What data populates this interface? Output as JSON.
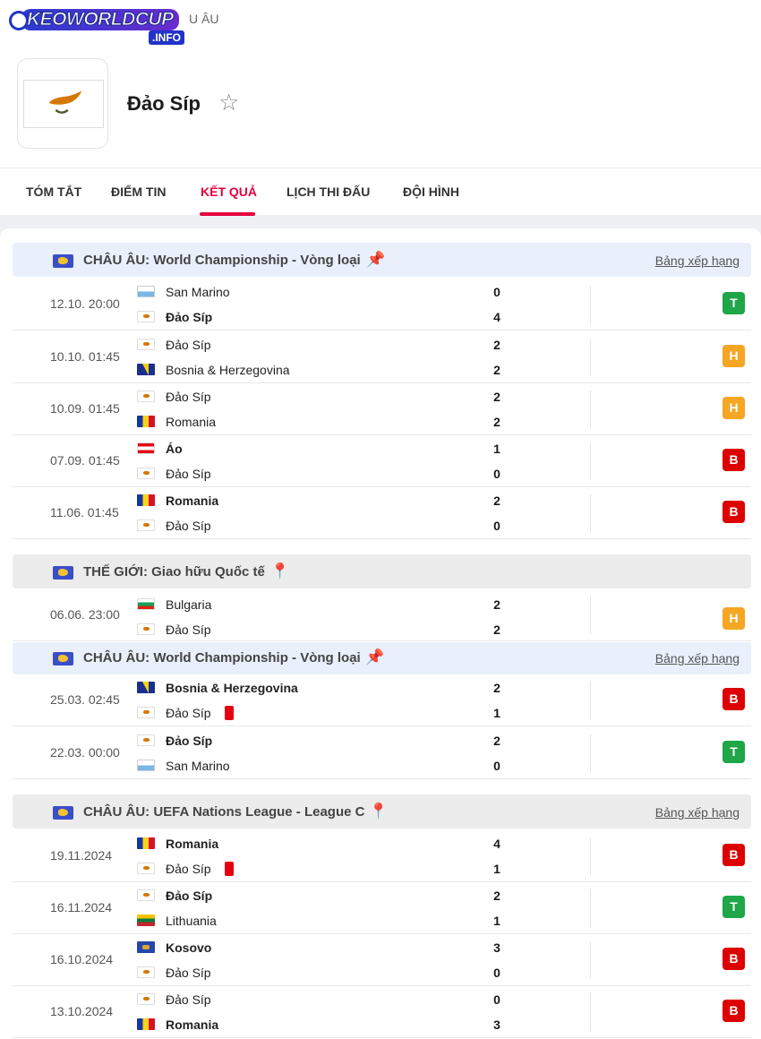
{
  "header": {
    "logo_text": "KEOWORLDCUP",
    "logo_suffix": ".INFO",
    "breadcrumb": "U ÂU",
    "team_name": "Đảo Síp"
  },
  "tabs": [
    "TÓM TẮT",
    "ĐIỂM TIN",
    "KẾT QUẢ",
    "LỊCH THI ĐẤU",
    "ĐỘI HÌNH"
  ],
  "active_tab": "KẾT QUẢ",
  "standings_label": "Bảng xếp hạng",
  "leagues": [
    {
      "name": "CHÂU ÂU: World Championship - Vòng loại",
      "pinned": true,
      "show_standings": true,
      "matches": [
        {
          "date": "12.10. 20:00",
          "home": "San Marino",
          "home_flag": "sm",
          "away": "Đảo Síp",
          "away_flag": "cy",
          "home_score": "0",
          "away_score": "4",
          "bold": "away",
          "result": "T"
        },
        {
          "date": "10.10. 01:45",
          "home": "Đảo Síp",
          "home_flag": "cy",
          "away": "Bosnia & Herzegovina",
          "away_flag": "ba",
          "home_score": "2",
          "away_score": "2",
          "bold": "",
          "result": "H"
        },
        {
          "date": "10.09. 01:45",
          "home": "Đảo Síp",
          "home_flag": "cy",
          "away": "Romania",
          "away_flag": "ro",
          "home_score": "2",
          "away_score": "2",
          "bold": "",
          "result": "H"
        },
        {
          "date": "07.09. 01:45",
          "home": "Áo",
          "home_flag": "at",
          "away": "Đảo Síp",
          "away_flag": "cy",
          "home_score": "1",
          "away_score": "0",
          "bold": "home",
          "result": "B"
        },
        {
          "date": "11.06. 01:45",
          "home": "Romania",
          "home_flag": "ro",
          "away": "Đảo Síp",
          "away_flag": "cy",
          "home_score": "2",
          "away_score": "0",
          "bold": "home",
          "result": "B"
        }
      ]
    },
    {
      "name": "THẾ GIỚI: Giao hữu Quốc tế",
      "pinned": false,
      "show_standings": false,
      "matches": [
        {
          "date": "06.06. 23:00",
          "home": "Bulgaria",
          "home_flag": "bg",
          "away": "Đảo Síp",
          "away_flag": "cy",
          "home_score": "2",
          "away_score": "2",
          "bold": "",
          "result": "H"
        }
      ]
    },
    {
      "name": "CHÂU ÂU: World Championship - Vòng loại",
      "pinned": true,
      "show_standings": true,
      "matches": [
        {
          "date": "25.03. 02:45",
          "home": "Bosnia & Herzegovina",
          "home_flag": "ba",
          "away": "Đảo Síp",
          "away_flag": "cy",
          "home_score": "2",
          "away_score": "1",
          "bold": "home",
          "result": "B",
          "away_red_card": true
        },
        {
          "date": "22.03. 00:00",
          "home": "Đảo Síp",
          "home_flag": "cy",
          "away": "San Marino",
          "away_flag": "sm",
          "home_score": "2",
          "away_score": "0",
          "bold": "home",
          "result": "T"
        }
      ]
    },
    {
      "name": "CHÂU ÂU: UEFA Nations League - League C",
      "pinned": false,
      "show_standings": true,
      "matches": [
        {
          "date": "19.11.2024",
          "home": "Romania",
          "home_flag": "ro",
          "away": "Đảo Síp",
          "away_flag": "cy",
          "home_score": "4",
          "away_score": "1",
          "bold": "home",
          "result": "B",
          "away_red_card": true
        },
        {
          "date": "16.11.2024",
          "home": "Đảo Síp",
          "home_flag": "cy",
          "away": "Lithuania",
          "away_flag": "lt",
          "home_score": "2",
          "away_score": "1",
          "bold": "home",
          "result": "T"
        },
        {
          "date": "16.10.2024",
          "home": "Kosovo",
          "home_flag": "xk",
          "away": "Đảo Síp",
          "away_flag": "cy",
          "home_score": "3",
          "away_score": "0",
          "bold": "home",
          "result": "B"
        },
        {
          "date": "13.10.2024",
          "home": "Đảo Síp",
          "home_flag": "cy",
          "away": "Romania",
          "away_flag": "ro",
          "home_score": "0",
          "away_score": "3",
          "bold": "away",
          "result": "B"
        }
      ]
    }
  ],
  "colors": {
    "accent": "#e4003c",
    "win": "#1ea649",
    "draw": "#f5a623",
    "loss": "#dc0000"
  }
}
